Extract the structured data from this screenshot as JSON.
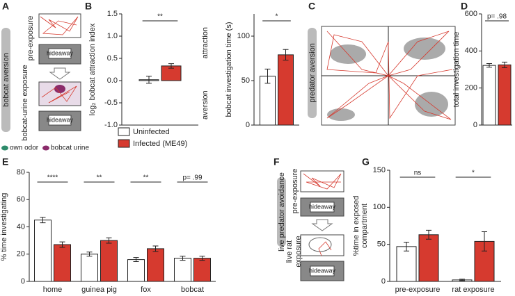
{
  "panel_labels": [
    "A",
    "B",
    "C",
    "D",
    "E",
    "F",
    "G"
  ],
  "diagram_a": {
    "banner": "bobcat aversion",
    "stage_1": "pre-exposure",
    "stage_2": "bobcat-urine exposure",
    "box_1": "hideaway",
    "box_2": "hideaway",
    "key_1": "own odor",
    "key_2": "bobcat urine"
  },
  "diagram_c": {
    "banner": "predator aversion"
  },
  "diagram_f": {
    "banner": "live predator avoidance",
    "stage_1": "pre-exposure",
    "stage_2": [
      "live rat",
      "exposure"
    ],
    "box_1": "hideaway",
    "box_2": "hideaway"
  },
  "chart_data": [
    {
      "type": "bar",
      "ylabel": "log₂ bobcat attraction index",
      "ylim": [
        -1,
        1.5
      ],
      "yticks": [
        {
          "value": -1,
          "label": "-1.0"
        },
        {
          "value": -0.5,
          "label": "-0.5"
        },
        {
          "value": 0,
          "label": "0.0"
        },
        {
          "value": 0.5,
          "label": "0.5"
        },
        {
          "value": 1,
          "label": "1.0"
        },
        {
          "value": 1.5,
          "label": "1.5"
        }
      ],
      "series": [
        {
          "color": "#ffffff",
          "values": [
            0.02
          ],
          "errors": [
            0.08
          ]
        },
        {
          "color": "#d63a2f",
          "values": [
            0.33
          ],
          "errors": [
            0.05
          ]
        }
      ],
      "annotations": [
        "**"
      ],
      "side_labels": [
        "attraction",
        "aversion"
      ]
    },
    {
      "type": "bar",
      "ylabel": "bobcat investigation time (s)",
      "ylim": [
        0,
        125
      ],
      "yticks": [
        0,
        50,
        100
      ],
      "series": [
        {
          "color": "#ffffff",
          "values": [
            55
          ],
          "errors": [
            8
          ]
        },
        {
          "color": "#d63a2f",
          "values": [
            79
          ],
          "errors": [
            6
          ]
        }
      ],
      "annotations": [
        "*"
      ]
    },
    {
      "type": "bar",
      "ylabel": "total investigation time",
      "ylim": [
        0,
        600
      ],
      "yticks": [
        0,
        200,
        400,
        600
      ],
      "series": [
        {
          "color": "#ffffff",
          "values": [
            322
          ],
          "errors": [
            10
          ]
        },
        {
          "color": "#d63a2f",
          "values": [
            325
          ],
          "errors": [
            15
          ]
        }
      ],
      "annotations": [
        "p= .98"
      ]
    },
    {
      "type": "bar",
      "ylabel": "% time investigating",
      "ylim": [
        0,
        80
      ],
      "yticks": [
        0,
        20,
        40,
        60,
        80
      ],
      "categories": [
        "home",
        "guinea pig",
        "fox",
        "bobcat"
      ],
      "series": [
        {
          "name": "Uninfected",
          "color": "#ffffff",
          "values": [
            45,
            20,
            16,
            17
          ],
          "errors": [
            2,
            1.5,
            1.5,
            1.5
          ]
        },
        {
          "name": "Infected (ME49)",
          "color": "#d63a2f",
          "values": [
            27,
            30,
            24,
            17
          ],
          "errors": [
            2,
            2,
            2,
            1.5
          ]
        }
      ],
      "annotations": [
        "****",
        "**",
        "**",
        "p= .99"
      ]
    },
    {
      "type": "bar",
      "ylabel": [
        "%time in exposed",
        "compartment"
      ],
      "ylim": [
        0,
        150
      ],
      "yticks": [
        0,
        50,
        100,
        150
      ],
      "categories": [
        "pre-exposure",
        "rat exposure"
      ],
      "series": [
        {
          "color": "#ffffff",
          "values": [
            47,
            2
          ],
          "errors": [
            6,
            1
          ]
        },
        {
          "color": "#d63a2f",
          "values": [
            63,
            54
          ],
          "errors": [
            6,
            13
          ]
        }
      ],
      "annotations": [
        "ns",
        "*"
      ]
    }
  ]
}
